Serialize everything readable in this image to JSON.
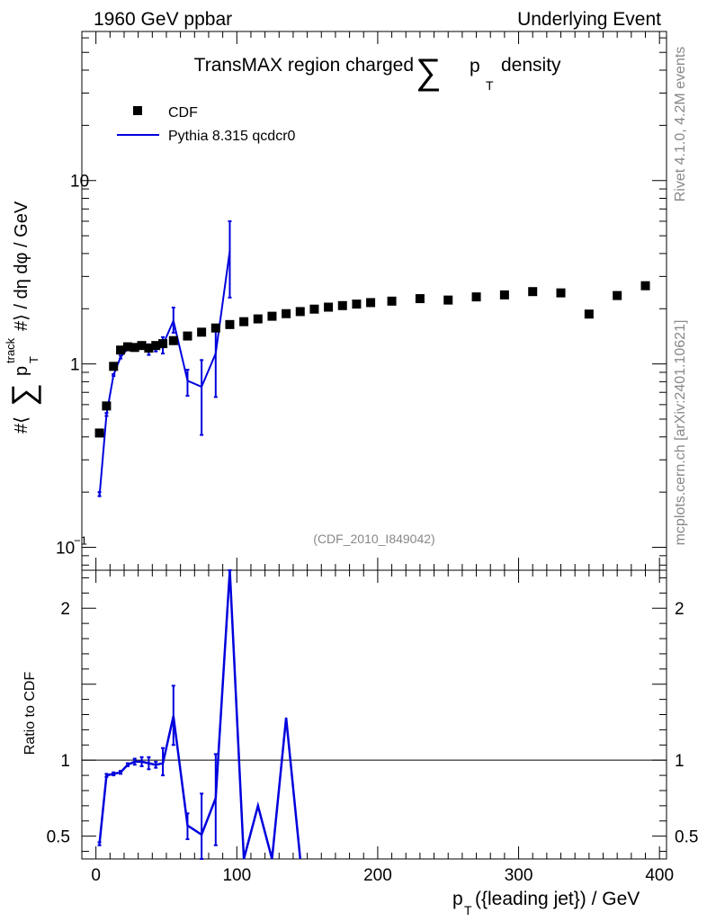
{
  "header": {
    "left": "1960 GeV ppbar",
    "right": "Underlying Event",
    "title_prefix": "TransMAX region charged",
    "title_sum": "∑",
    "title_p": "p",
    "title_sub": "T",
    "title_suffix": "density"
  },
  "side": {
    "rivet": "Rivet 4.1.0,  4.2M events",
    "mcplots": "mcplots.cern.ch [arXiv:2401.10621]"
  },
  "watermark": "(CDF_2010_I849042)",
  "colors": {
    "data": "#000000",
    "mc": "#0000dd",
    "grey": "#888888"
  },
  "chart_data": [
    {
      "type": "scatter",
      "title": "TransMAX region charged ∑ pT density",
      "ylabel": "#⟨ ∑ p_T^track #⟩ / dη dφ / GeV",
      "xlabel": "p_T({leading jet}) / GeV",
      "yscale": "log",
      "xlim": [
        -10,
        405
      ],
      "ylim": [
        0.075,
        65
      ],
      "y_ticks": [
        {
          "v": 0.1,
          "label": "10",
          "sup": "−1"
        },
        {
          "v": 1,
          "label": "1"
        },
        {
          "v": 10,
          "label": "10"
        }
      ],
      "legend": [
        {
          "name": "CDF",
          "marker": "square"
        },
        {
          "name": "Pythia 8.315 qcdcr0",
          "marker": "line"
        }
      ],
      "series": [
        {
          "name": "CDF",
          "x": [
            2.5,
            7.5,
            12.5,
            17.5,
            22.5,
            27.5,
            32.5,
            37.5,
            42.5,
            47.5,
            55,
            65,
            75,
            85,
            95,
            105,
            115,
            125,
            135,
            145,
            155,
            165,
            175,
            185,
            195,
            210,
            230,
            250,
            270,
            290,
            310,
            330,
            350,
            370,
            390
          ],
          "y": [
            0.42,
            0.59,
            0.97,
            1.19,
            1.24,
            1.23,
            1.26,
            1.22,
            1.26,
            1.29,
            1.34,
            1.42,
            1.49,
            1.57,
            1.64,
            1.7,
            1.76,
            1.82,
            1.88,
            1.93,
            1.99,
            2.04,
            2.08,
            2.12,
            2.16,
            2.2,
            2.27,
            2.23,
            2.32,
            2.38,
            2.48,
            2.44,
            1.87,
            2.36,
            2.67
          ]
        },
        {
          "name": "Pythia 8.315 qcdcr0",
          "x": [
            2.5,
            7.5,
            12.5,
            17.5,
            22.5,
            27.5,
            32.5,
            37.5,
            42.5,
            47.5,
            55,
            65,
            75,
            85,
            95
          ],
          "y": [
            0.19,
            0.53,
            0.87,
            1.09,
            1.21,
            1.24,
            1.26,
            1.2,
            1.21,
            1.27,
            1.72,
            0.81,
            0.75,
            1.14,
            4.15
          ],
          "err_lo": [
            0.19,
            0.52,
            0.86,
            1.07,
            1.19,
            1.21,
            1.22,
            1.12,
            1.17,
            1.14,
            1.48,
            0.67,
            0.41,
            0.66,
            2.3
          ],
          "err_hi": [
            0.2,
            0.54,
            0.88,
            1.11,
            1.23,
            1.27,
            1.3,
            1.28,
            1.25,
            1.4,
            2.03,
            0.93,
            1.05,
            1.62,
            6.0
          ]
        }
      ]
    },
    {
      "type": "line",
      "ylabel": "Ratio to CDF",
      "xlabel": "p_T({leading jet}) / GeV",
      "xlim": [
        -10,
        405
      ],
      "ylim": [
        0.35,
        2.25
      ],
      "reference": 1,
      "y_ticks": [
        0.5,
        1,
        2
      ],
      "y_tick_labels": [
        "0.5",
        "1",
        "2"
      ],
      "x_ticks": [
        0,
        100,
        200,
        300,
        400
      ],
      "x_tick_labels": [
        "0",
        "100",
        "200",
        "300",
        "400"
      ],
      "series": [
        {
          "name": "Pythia 8.315 qcdcr0 / CDF",
          "x": [
            2.5,
            7.5,
            12.5,
            17.5,
            22.5,
            27.5,
            32.5,
            37.5,
            42.5,
            47.5,
            55,
            65,
            75,
            85,
            95,
            105,
            115,
            125,
            135,
            145
          ],
          "y": [
            0.45,
            0.9,
            0.91,
            0.92,
            0.97,
            0.99,
            0.99,
            0.98,
            0.97,
            0.98,
            1.29,
            0.57,
            0.51,
            0.75,
            2.5,
            0.25,
            0.7,
            0.25,
            1.28,
            0.25
          ],
          "err_lo": [
            0.44,
            0.89,
            0.9,
            0.91,
            0.96,
            0.97,
            0.96,
            0.94,
            0.95,
            0.9,
            1.1,
            0.48,
            0.3,
            0.44,
            2.4,
            0.25,
            0.7,
            0.25,
            1.28,
            0.25
          ],
          "err_hi": [
            0.46,
            0.91,
            0.92,
            0.93,
            0.98,
            1.01,
            1.02,
            1.02,
            0.99,
            1.08,
            1.49,
            0.65,
            0.78,
            1.04,
            2.6,
            0.25,
            0.7,
            0.25,
            1.28,
            0.25
          ]
        }
      ]
    }
  ]
}
